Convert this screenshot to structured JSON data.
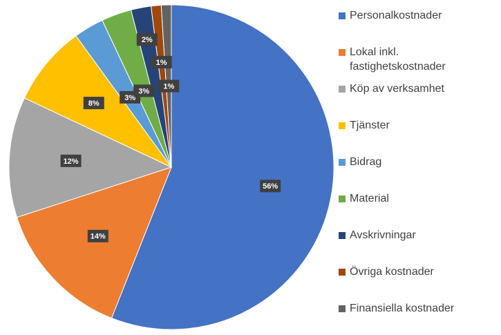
{
  "chart_data": {
    "type": "pie",
    "categories": [
      "Personalkostnader",
      "Lokal inkl. fastighetskostnader",
      "Köp av verksamhet",
      "Tjänster",
      "Bidrag",
      "Material",
      "Avskrivningar",
      "Övriga kostnader",
      "Finansiella kostnader"
    ],
    "values": [
      56,
      14,
      12,
      8,
      3,
      3,
      2,
      1,
      1
    ],
    "value_labels": [
      "56%",
      "14%",
      "12%",
      "8%",
      "3%",
      "3%",
      "2%",
      "1%",
      "1%"
    ],
    "colors": [
      "#4472c4",
      "#ed7d31",
      "#a5a5a5",
      "#ffc000",
      "#5b9bd5",
      "#70ad47",
      "#264478",
      "#9e480e",
      "#636363"
    ],
    "legend": "right"
  }
}
